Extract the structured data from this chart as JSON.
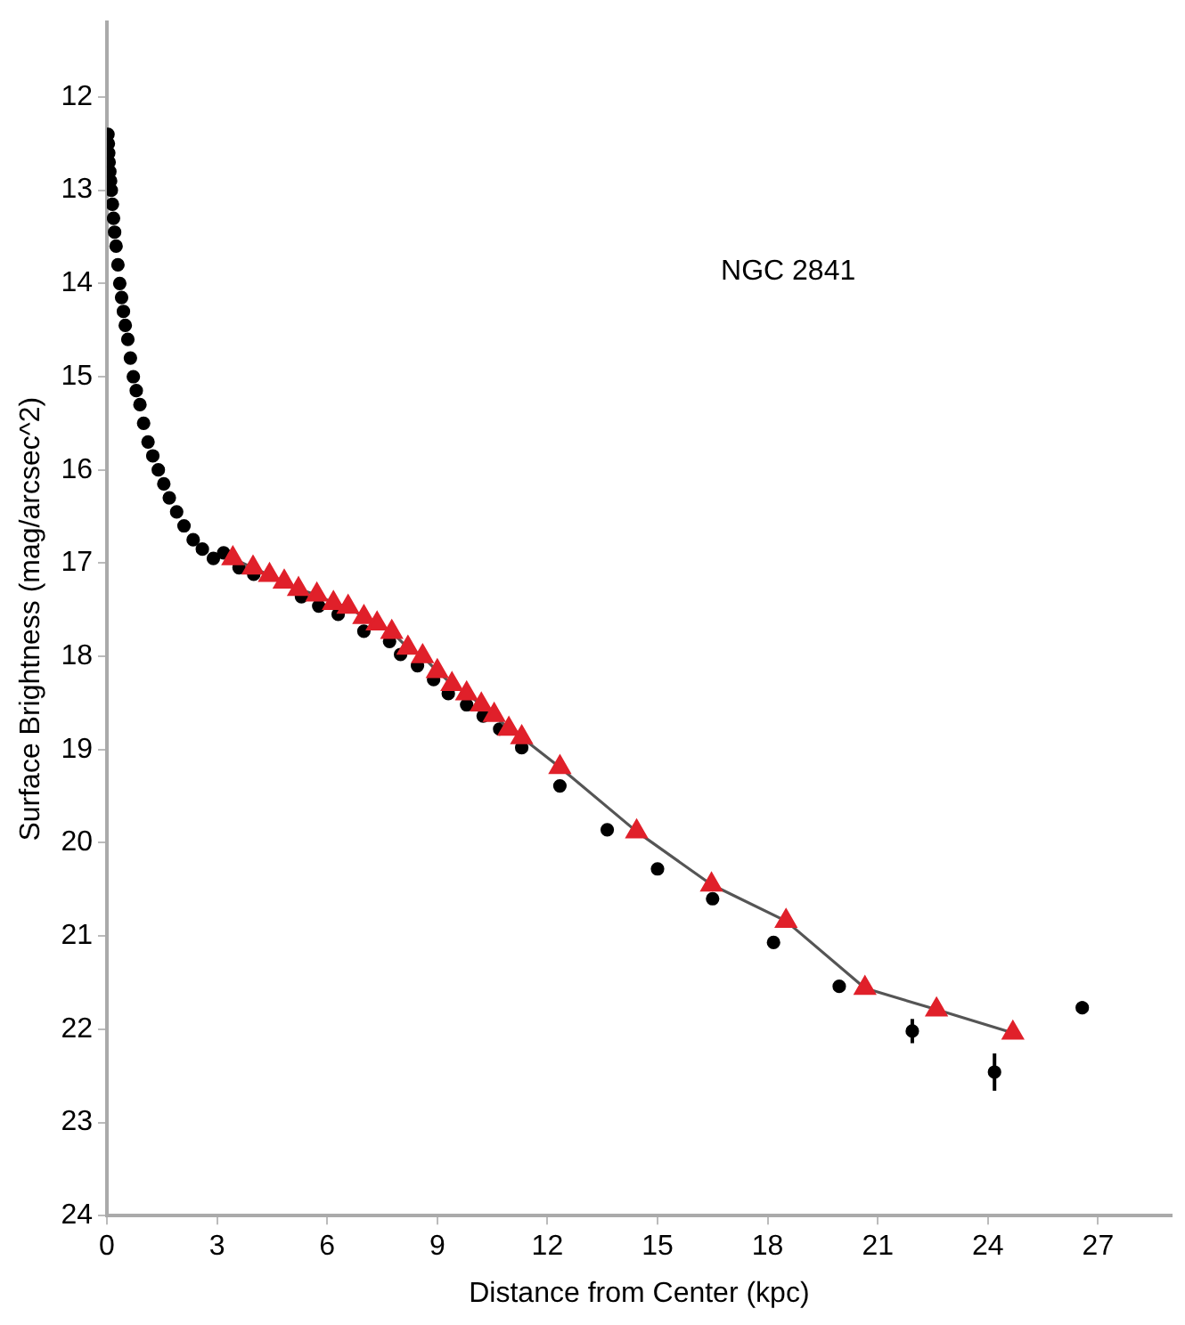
{
  "chart_data": {
    "type": "scatter",
    "xlabel": "Distance from Center (kpc)",
    "ylabel": "Surface Brightness (mag/arcsec^2)",
    "annotations": [
      "NGC 2841"
    ],
    "xlim": [
      0,
      29
    ],
    "xticks": [
      0,
      3,
      6,
      9,
      12,
      15,
      18,
      21,
      24,
      27
    ],
    "ylim": [
      24,
      11.2
    ],
    "yticks": [
      12,
      13,
      14,
      15,
      16,
      17,
      18,
      19,
      20,
      21,
      22,
      23,
      24
    ],
    "grid": false,
    "legend": false,
    "series": [
      {
        "type": "scatter",
        "marker": "circle",
        "color": "#000000",
        "x": [
          0.03,
          0.04,
          0.05,
          0.06,
          0.08,
          0.1,
          0.12,
          0.15,
          0.18,
          0.21,
          0.25,
          0.3,
          0.35,
          0.4,
          0.45,
          0.5,
          0.57,
          0.64,
          0.72,
          0.8,
          0.9,
          1.0,
          1.12,
          1.25,
          1.4,
          1.55,
          1.7,
          1.9,
          2.1,
          2.35,
          2.6,
          2.9,
          3.18,
          3.6,
          4.0,
          4.4,
          4.8,
          5.3,
          5.77,
          6.3,
          7.0,
          7.7,
          8.0,
          8.46,
          8.9,
          9.3,
          9.8,
          10.25,
          10.7,
          11.3,
          12.34,
          13.63,
          15.0,
          16.5,
          18.16,
          19.95,
          21.94,
          24.18,
          26.57
        ],
        "values": [
          12.4,
          12.5,
          12.6,
          12.7,
          12.8,
          12.9,
          13.0,
          13.15,
          13.3,
          13.45,
          13.6,
          13.8,
          14.0,
          14.15,
          14.3,
          14.45,
          14.6,
          14.8,
          15.0,
          15.15,
          15.3,
          15.5,
          15.7,
          15.85,
          16.0,
          16.15,
          16.3,
          16.45,
          16.6,
          16.75,
          16.85,
          16.95,
          16.89,
          17.05,
          17.12,
          null,
          null,
          17.36,
          17.46,
          17.55,
          17.73,
          17.84,
          17.98,
          18.1,
          18.25,
          18.4,
          18.52,
          18.64,
          18.78,
          18.98,
          19.39,
          19.86,
          20.28,
          20.6,
          21.07,
          21.54,
          22.02,
          22.46,
          21.77
        ],
        "errors": [
          null,
          null,
          null,
          null,
          null,
          null,
          null,
          null,
          null,
          null,
          null,
          null,
          null,
          null,
          null,
          null,
          null,
          null,
          null,
          null,
          null,
          null,
          null,
          null,
          null,
          null,
          null,
          null,
          null,
          null,
          null,
          null,
          null,
          null,
          null,
          null,
          null,
          null,
          null,
          null,
          null,
          null,
          null,
          null,
          null,
          null,
          null,
          null,
          null,
          null,
          null,
          null,
          null,
          null,
          null,
          0.05,
          0.13,
          0.2,
          0.07
        ]
      },
      {
        "type": "line",
        "marker": "triangle",
        "line_style": "solid",
        "color": "#e0202a",
        "x": [
          3.43,
          3.98,
          4.43,
          4.83,
          5.22,
          5.72,
          6.17,
          6.57,
          7.0,
          7.36,
          7.76,
          8.2,
          8.6,
          9.0,
          9.4,
          9.8,
          10.2,
          10.55,
          10.95,
          11.3,
          12.34,
          14.43,
          16.47,
          18.5,
          20.65,
          22.6,
          24.68
        ],
        "values": [
          16.95,
          17.05,
          17.13,
          17.2,
          17.28,
          17.34,
          17.43,
          17.47,
          17.58,
          17.65,
          17.74,
          17.91,
          18.0,
          18.16,
          18.3,
          18.4,
          18.52,
          18.63,
          18.78,
          18.87,
          19.19,
          19.88,
          20.45,
          20.84,
          21.56,
          21.79,
          22.04
        ]
      }
    ]
  }
}
